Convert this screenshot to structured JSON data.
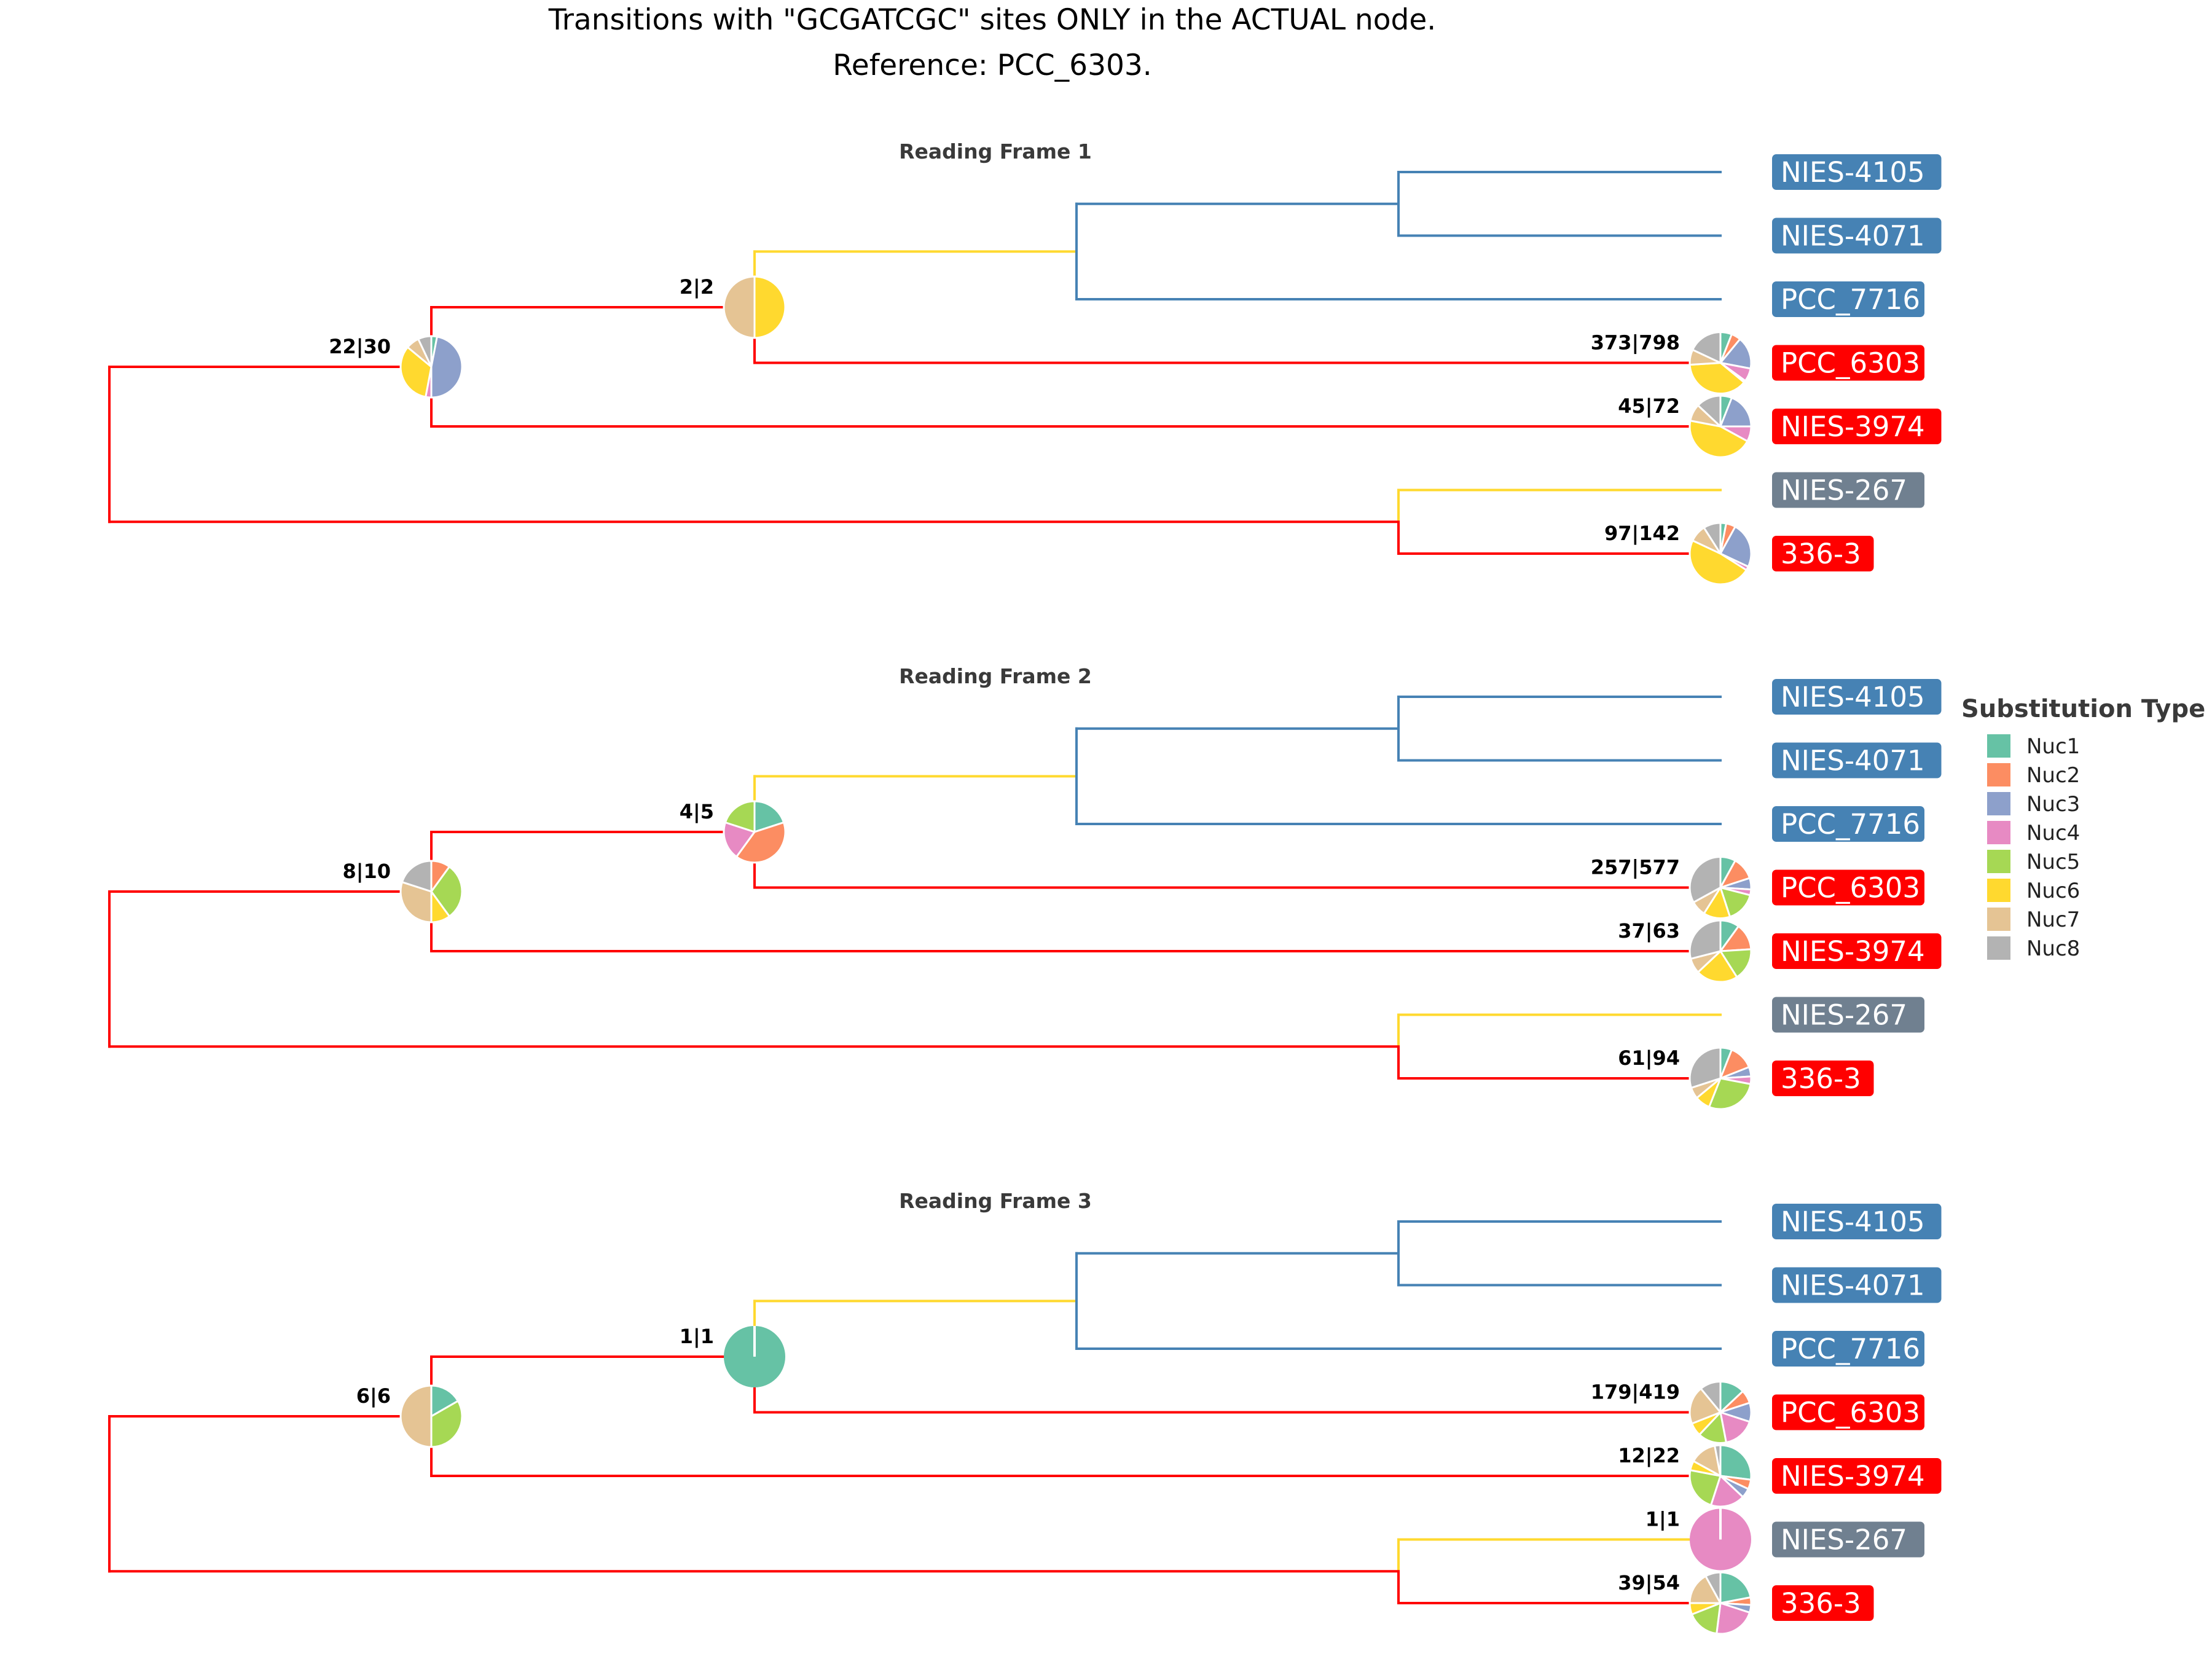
{
  "title": {
    "line1": "Transitions with \"GCGATCGC\" sites ONLY in the ACTUAL node.",
    "line2": "Reference: PCC_6303."
  },
  "colors": {
    "red": "#ff0000",
    "blue": "#4682b4",
    "gray": "#708090",
    "yellow": "#ffd92f"
  },
  "legend": {
    "title": "Substitution Type",
    "items": [
      {
        "label": "Nuc1",
        "color": "#66c2a5"
      },
      {
        "label": "Nuc2",
        "color": "#fc8d62"
      },
      {
        "label": "Nuc3",
        "color": "#8da0cb"
      },
      {
        "label": "Nuc4",
        "color": "#e78ac3"
      },
      {
        "label": "Nuc5",
        "color": "#a6d854"
      },
      {
        "label": "Nuc6",
        "color": "#ffd92f"
      },
      {
        "label": "Nuc7",
        "color": "#e5c494"
      },
      {
        "label": "Nuc8",
        "color": "#b3b3b3"
      }
    ]
  },
  "leaves": [
    {
      "name": "NIES-4105",
      "group": "blue"
    },
    {
      "name": "NIES-4071",
      "group": "blue"
    },
    {
      "name": "PCC_7716",
      "group": "blue"
    },
    {
      "name": "PCC_6303",
      "group": "red"
    },
    {
      "name": "NIES-3974",
      "group": "red"
    },
    {
      "name": "NIES-267",
      "group": "gray"
    },
    {
      "name": "336-3",
      "group": "red"
    }
  ],
  "frames": [
    {
      "title": "Reading Frame 1",
      "pies": [
        {
          "node": "root-child",
          "label": "22|30",
          "fractions": [
            0.03,
            0.0,
            0.47,
            0.03,
            0.0,
            0.33,
            0.07,
            0.07
          ]
        },
        {
          "node": "inner",
          "label": "2|2",
          "fractions": [
            0,
            0,
            0,
            0,
            0,
            0.5,
            0.5,
            0
          ]
        },
        {
          "node": "PCC_6303",
          "label": "373|798",
          "fractions": [
            0.06,
            0.05,
            0.17,
            0.07,
            0.01,
            0.38,
            0.08,
            0.18
          ]
        },
        {
          "node": "NIES-3974",
          "label": "45|72",
          "fractions": [
            0.06,
            0.0,
            0.19,
            0.08,
            0.0,
            0.45,
            0.09,
            0.13
          ]
        },
        {
          "node": "336-3",
          "label": "97|142",
          "fractions": [
            0.03,
            0.05,
            0.24,
            0.02,
            0.0,
            0.48,
            0.09,
            0.09
          ]
        }
      ]
    },
    {
      "title": "Reading Frame 2",
      "pies": [
        {
          "node": "root-child",
          "label": "8|10",
          "fractions": [
            0,
            0.1,
            0,
            0,
            0.3,
            0.1,
            0.3,
            0.2
          ]
        },
        {
          "node": "inner",
          "label": "4|5",
          "fractions": [
            0.2,
            0.4,
            0,
            0.2,
            0.2,
            0,
            0,
            0
          ]
        },
        {
          "node": "PCC_6303",
          "label": "257|577",
          "fractions": [
            0.08,
            0.12,
            0.06,
            0.03,
            0.16,
            0.14,
            0.08,
            0.33
          ]
        },
        {
          "node": "NIES-3974",
          "label": "37|63",
          "fractions": [
            0.1,
            0.14,
            0.0,
            0.0,
            0.17,
            0.22,
            0.08,
            0.29
          ]
        },
        {
          "node": "336-3",
          "label": "61|94",
          "fractions": [
            0.06,
            0.13,
            0.05,
            0.04,
            0.28,
            0.08,
            0.06,
            0.3
          ]
        }
      ]
    },
    {
      "title": "Reading Frame 3",
      "pies": [
        {
          "node": "root-child",
          "label": "6|6",
          "fractions": [
            0.167,
            0,
            0,
            0,
            0.333,
            0,
            0.5,
            0
          ]
        },
        {
          "node": "inner",
          "label": "1|1",
          "fractions": [
            1,
            0,
            0,
            0,
            0,
            0,
            0,
            0
          ]
        },
        {
          "node": "PCC_6303",
          "label": "179|419",
          "fractions": [
            0.13,
            0.07,
            0.1,
            0.17,
            0.15,
            0.07,
            0.2,
            0.11
          ]
        },
        {
          "node": "NIES-3974",
          "label": "12|22",
          "fractions": [
            0.27,
            0.05,
            0.05,
            0.18,
            0.23,
            0.05,
            0.14,
            0.03
          ]
        },
        {
          "node": "NIES-267",
          "label": "1|1",
          "fractions": [
            0,
            0,
            0,
            1,
            0,
            0,
            0,
            0
          ]
        },
        {
          "node": "336-3",
          "label": "39|54",
          "fractions": [
            0.22,
            0.04,
            0.04,
            0.22,
            0.17,
            0.06,
            0.17,
            0.08
          ]
        }
      ]
    }
  ]
}
